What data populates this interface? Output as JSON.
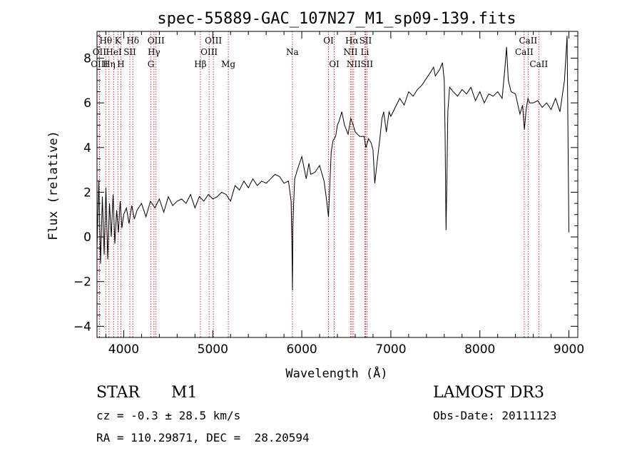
{
  "chart_data": {
    "type": "line",
    "title": "spec-55889-GAC_107N27_M1_sp09-139.fits",
    "xlabel": "Wavelength (Å)",
    "ylabel": "Flux (relative)",
    "xlim": [
      3700,
      9100
    ],
    "ylim": [
      -4.5,
      9.2
    ],
    "xticks": [
      4000,
      5000,
      6000,
      7000,
      8000,
      9000
    ],
    "yticks": [
      -4,
      -2,
      0,
      2,
      4,
      6,
      8
    ],
    "series": [
      {
        "name": "flux",
        "x": [
          3700,
          3720,
          3740,
          3760,
          3780,
          3800,
          3820,
          3840,
          3860,
          3880,
          3900,
          3920,
          3940,
          3960,
          3980,
          4000,
          4030,
          4060,
          4090,
          4120,
          4150,
          4200,
          4250,
          4300,
          4350,
          4400,
          4450,
          4500,
          4550,
          4600,
          4650,
          4700,
          4750,
          4800,
          4850,
          4900,
          4950,
          5000,
          5050,
          5100,
          5150,
          5200,
          5250,
          5300,
          5350,
          5400,
          5450,
          5500,
          5550,
          5600,
          5650,
          5700,
          5750,
          5800,
          5850,
          5880,
          5890,
          5895,
          5900,
          5910,
          5920,
          5950,
          6000,
          6050,
          6080,
          6100,
          6150,
          6200,
          6250,
          6280,
          6300,
          6330,
          6350,
          6380,
          6400,
          6420,
          6450,
          6480,
          6500,
          6520,
          6550,
          6570,
          6600,
          6650,
          6700,
          6720,
          6750,
          6780,
          6800,
          6820,
          6850,
          6880,
          6900,
          6920,
          6950,
          6980,
          7000,
          7050,
          7100,
          7150,
          7200,
          7250,
          7300,
          7350,
          7400,
          7450,
          7480,
          7500,
          7550,
          7580,
          7600,
          7610,
          7620,
          7630,
          7640,
          7660,
          7700,
          7750,
          7800,
          7850,
          7900,
          7950,
          8000,
          8050,
          8100,
          8150,
          8200,
          8250,
          8280,
          8300,
          8320,
          8350,
          8400,
          8450,
          8480,
          8500,
          8520,
          8540,
          8560,
          8600,
          8650,
          8700,
          8750,
          8800,
          8850,
          8900,
          8950,
          8980,
          9000
        ],
        "y": [
          -0.5,
          2.5,
          -1.2,
          1.8,
          -0.8,
          2.2,
          -1.0,
          1.5,
          0.0,
          1.9,
          -0.3,
          1.2,
          0.2,
          1.6,
          0.4,
          1.0,
          1.3,
          0.6,
          1.4,
          0.8,
          1.2,
          1.5,
          0.9,
          1.6,
          1.3,
          1.7,
          1.1,
          1.8,
          1.4,
          1.6,
          1.7,
          1.5,
          1.9,
          1.3,
          1.8,
          1.6,
          1.9,
          1.7,
          1.8,
          2.0,
          1.9,
          1.6,
          2.3,
          2.1,
          2.5,
          2.2,
          2.6,
          2.3,
          2.5,
          2.4,
          2.6,
          2.8,
          2.7,
          2.4,
          2.5,
          1.6,
          -0.5,
          -2.4,
          0.5,
          1.6,
          2.6,
          3.0,
          3.6,
          2.6,
          3.3,
          2.8,
          2.9,
          3.2,
          2.5,
          1.6,
          0.9,
          3.8,
          4.3,
          4.5,
          5.0,
          5.2,
          5.6,
          5.0,
          4.8,
          4.6,
          5.3,
          5.1,
          4.7,
          4.5,
          4.5,
          4.0,
          4.4,
          4.2,
          3.9,
          2.4,
          3.5,
          4.5,
          5.3,
          5.6,
          4.7,
          5.6,
          5.4,
          5.8,
          6.2,
          5.9,
          6.5,
          6.3,
          6.6,
          6.8,
          7.1,
          7.4,
          7.6,
          7.2,
          7.5,
          7.8,
          7.0,
          4.5,
          0.3,
          2.6,
          5.6,
          6.7,
          6.5,
          6.3,
          6.6,
          6.4,
          6.7,
          6.1,
          6.5,
          6.0,
          6.4,
          6.3,
          6.5,
          6.2,
          7.5,
          8.5,
          7.0,
          6.5,
          6.4,
          5.5,
          5.9,
          4.8,
          5.7,
          6.2,
          6.0,
          6.0,
          6.1,
          5.8,
          6.0,
          5.7,
          6.2,
          5.6,
          7.0,
          9.0,
          0.2
        ]
      }
    ],
    "spectral_lines": [
      {
        "name": "Hθ",
        "wavelength": 3798,
        "row": 0
      },
      {
        "name": "OII",
        "wavelength": 3727,
        "row": 1
      },
      {
        "name": "OIII",
        "wavelength": 3726,
        "row": 2
      },
      {
        "name": "Hη",
        "wavelength": 3835,
        "row": 2
      },
      {
        "name": "HeI",
        "wavelength": 3889,
        "row": 1
      },
      {
        "name": "K",
        "wavelength": 3934,
        "row": 0
      },
      {
        "name": "H",
        "wavelength": 3968,
        "row": 2
      },
      {
        "name": "SII",
        "wavelength": 4069,
        "row": 1
      },
      {
        "name": "Hδ",
        "wavelength": 4102,
        "row": 0
      },
      {
        "name": "G",
        "wavelength": 4305,
        "row": 2
      },
      {
        "name": "Hγ",
        "wavelength": 4340,
        "row": 1
      },
      {
        "name": "OIII",
        "wavelength": 4363,
        "row": 0
      },
      {
        "name": "Hβ",
        "wavelength": 4861,
        "row": 2
      },
      {
        "name": "OIII",
        "wavelength": 4959,
        "row": 1
      },
      {
        "name": "OIII",
        "wavelength": 5007,
        "row": 0
      },
      {
        "name": "Mg",
        "wavelength": 5175,
        "row": 2
      },
      {
        "name": "Na",
        "wavelength": 5894,
        "row": 1
      },
      {
        "name": "OI",
        "wavelength": 6300,
        "row": 0
      },
      {
        "name": "OI",
        "wavelength": 6364,
        "row": 2
      },
      {
        "name": "NII",
        "wavelength": 6548,
        "row": 1
      },
      {
        "name": "Hα",
        "wavelength": 6563,
        "row": 0
      },
      {
        "name": "NII",
        "wavelength": 6583,
        "row": 2
      },
      {
        "name": "Li",
        "wavelength": 6708,
        "row": 1
      },
      {
        "name": "SII",
        "wavelength": 6716,
        "row": 0
      },
      {
        "name": "SII",
        "wavelength": 6731,
        "row": 2
      },
      {
        "name": "CaII",
        "wavelength": 8498,
        "row": 1
      },
      {
        "name": "CaII",
        "wavelength": 8542,
        "row": 0
      },
      {
        "name": "CaII",
        "wavelength": 8662,
        "row": 2
      }
    ],
    "line_color": "#cc0000",
    "series_color": "#000000"
  },
  "info": {
    "object_type": "STAR",
    "subclass": "M1",
    "survey": "LAMOST DR3",
    "cz": "cz = -0.3 ± 28.5 km/s",
    "obs_date": "Obs-Date: 20111123",
    "coords": "RA = 110.29871, DEC =  28.20594"
  }
}
